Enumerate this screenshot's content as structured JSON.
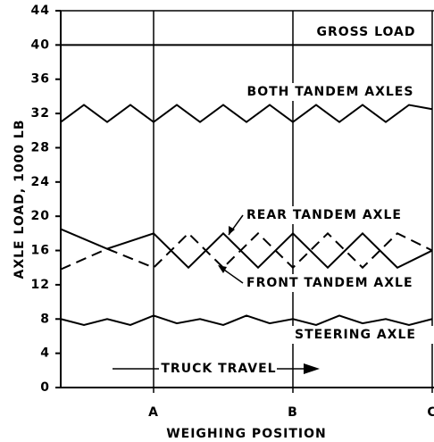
{
  "chart_data": {
    "type": "line",
    "ylabel": "AXLE LOAD, 1000 LB",
    "xlabel": "WEIGHING POSITION",
    "annotation": "TRUCK TRAVEL",
    "xlim": [
      0,
      8
    ],
    "xticks": [
      {
        "value": 2,
        "label": "A"
      },
      {
        "value": 5,
        "label": "B"
      },
      {
        "value": 8,
        "label": "C"
      }
    ],
    "ylim": [
      0,
      44
    ],
    "yticks": [
      0,
      4,
      8,
      12,
      16,
      20,
      24,
      28,
      32,
      36,
      40,
      44
    ],
    "series": [
      {
        "name": "GROSS LOAD",
        "color": "#000000",
        "dash": false,
        "x": [
          0,
          8
        ],
        "values": [
          40,
          40
        ]
      },
      {
        "name": "BOTH TANDEM AXLES",
        "color": "#000000",
        "dash": false,
        "x": [
          0,
          0.5,
          1,
          1.5,
          2,
          2.5,
          3,
          3.5,
          4,
          4.5,
          5,
          5.5,
          6,
          6.5,
          7,
          7.5,
          8
        ],
        "values": [
          31,
          33,
          31,
          33,
          31,
          33,
          31,
          33,
          31,
          33,
          31,
          33,
          31,
          33,
          31,
          33,
          32.5
        ]
      },
      {
        "name": "REAR TANDEM AXLE",
        "color": "#000000",
        "dash": true,
        "x": [
          0,
          1,
          2,
          2.75,
          3.5,
          4.25,
          5,
          5.75,
          6.5,
          7.25,
          8
        ],
        "values": [
          13.8,
          16.2,
          14,
          18,
          14,
          18,
          14,
          18,
          14,
          18,
          16
        ]
      },
      {
        "name": "FRONT TANDEM AXLE",
        "color": "#000000",
        "dash": false,
        "x": [
          0,
          1,
          2,
          2.75,
          3.5,
          4.25,
          5,
          5.75,
          6.5,
          7.25,
          8
        ],
        "values": [
          18.5,
          16.2,
          18,
          14,
          18,
          14,
          18,
          14,
          18,
          14,
          16
        ]
      },
      {
        "name": "STEERING AXLE",
        "color": "#000000",
        "dash": false,
        "x": [
          0,
          0.5,
          1,
          1.5,
          2,
          2.5,
          3,
          3.5,
          4,
          4.5,
          5,
          5.5,
          6,
          6.5,
          7,
          7.5,
          8
        ],
        "values": [
          8,
          7.3,
          8,
          7.3,
          8.4,
          7.5,
          8,
          7.3,
          8.4,
          7.5,
          8,
          7.3,
          8.4,
          7.5,
          8,
          7.3,
          8
        ]
      }
    ]
  }
}
